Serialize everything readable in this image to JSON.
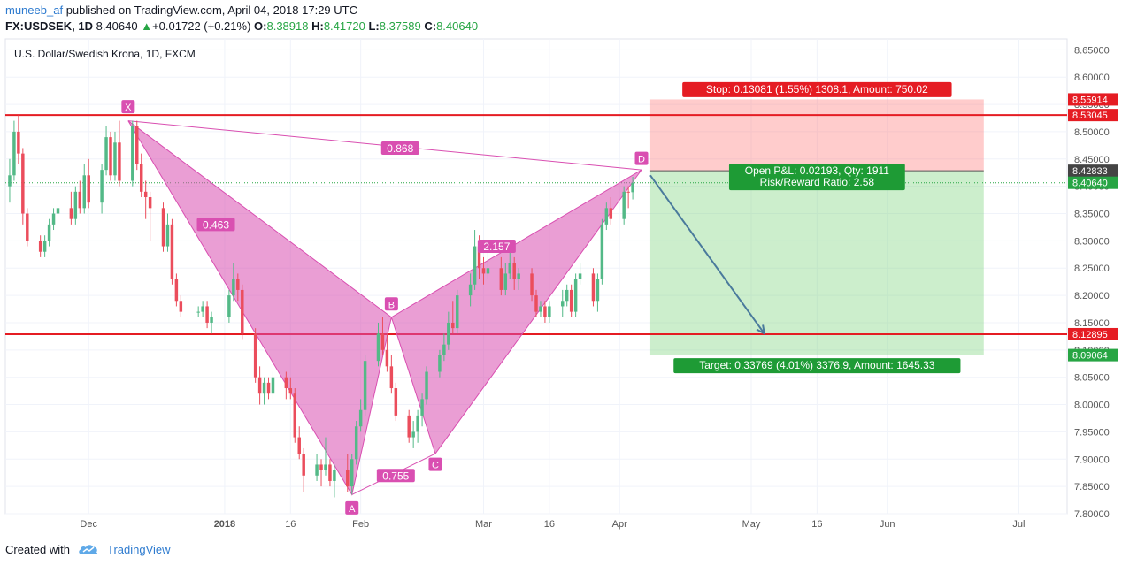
{
  "header": {
    "author": "muneeb_af",
    "published": "published on TradingView.com, April 04, 2018 17:29 UTC",
    "symbol": "FX:USDSEK, 1D",
    "last": "8.40640",
    "change": "+0.01722 (+0.21%)",
    "o_label": "O:",
    "o_value": "8.38918",
    "h_label": "H:",
    "h_value": "8.41720",
    "l_label": "L:",
    "l_value": "8.37589",
    "c_label": "C:",
    "c_value": "8.40640"
  },
  "footer": {
    "created_with": "Created with",
    "brand": "TradingView"
  },
  "chart_data": {
    "type": "candlestick",
    "title": "U.S. Dollar/Swedish Krona, 1D, FXCM",
    "ylim": [
      7.8,
      8.67
    ],
    "y_ticks": [
      "8.65000",
      "8.60000",
      "8.55000",
      "8.50000",
      "8.45000",
      "8.40000",
      "8.35000",
      "8.30000",
      "8.25000",
      "8.20000",
      "8.15000",
      "8.10000",
      "8.05000",
      "8.00000",
      "7.95000",
      "7.90000",
      "7.85000",
      "7.80000"
    ],
    "x_ticks": [
      {
        "label": "Dec",
        "date": "2017-12-01"
      },
      {
        "label": "2018",
        "date": "2018-01-01",
        "bold": true
      },
      {
        "label": "16",
        "date": "2018-01-16"
      },
      {
        "label": "Feb",
        "date": "2018-02-01"
      },
      {
        "label": "Mar",
        "date": "2018-03-01"
      },
      {
        "label": "16",
        "date": "2018-03-16"
      },
      {
        "label": "Apr",
        "date": "2018-04-01"
      },
      {
        "label": "May",
        "date": "2018-05-01"
      },
      {
        "label": "16",
        "date": "2018-05-16"
      },
      {
        "label": "Jun",
        "date": "2018-06-01"
      },
      {
        "label": "Jul",
        "date": "2018-07-01"
      }
    ],
    "x_range": [
      "2017-11-12",
      "2018-07-12"
    ],
    "horizontal_lines": [
      {
        "price": 8.53045,
        "label": "8.53045",
        "color": "#e51c23"
      },
      {
        "price": 8.12895,
        "label": "8.12895",
        "color": "#e51c23"
      }
    ],
    "price_labels": [
      {
        "price": 8.55914,
        "label": "8.55914",
        "color": "#e51c23"
      },
      {
        "price": 8.42833,
        "label": "8.42833",
        "color": "#444444"
      },
      {
        "price": 8.4064,
        "label": "8.40640",
        "color": "#27a544"
      },
      {
        "price": 8.09064,
        "label": "8.09064",
        "color": "#27a544"
      }
    ],
    "harmonic_pattern": {
      "points": [
        {
          "name": "X",
          "date": "2017-12-10",
          "price": 8.52
        },
        {
          "name": "A",
          "date": "2018-01-30",
          "price": 7.835
        },
        {
          "name": "B",
          "date": "2018-02-08",
          "price": 8.16
        },
        {
          "name": "C",
          "date": "2018-02-18",
          "price": 7.91
        },
        {
          "name": "D",
          "date": "2018-04-06",
          "price": 8.43
        }
      ],
      "ratios": [
        {
          "label": "0.868",
          "date": "2018-02-10",
          "price": 8.47
        },
        {
          "label": "0.463",
          "date": "2017-12-30",
          "price": 8.33
        },
        {
          "label": "0.755",
          "date": "2018-02-09",
          "price": 7.87
        },
        {
          "label": "2.157",
          "date": "2018-03-04",
          "price": 8.29
        }
      ],
      "color": "#d94fb1"
    },
    "position": {
      "type": "short",
      "entry": 8.42833,
      "stop": 8.55914,
      "target": 8.09064,
      "start_date": "2018-04-08",
      "end_date": "2018-06-23",
      "stop_label": "Stop: 0.13081 (1.55%) 1308.1, Amount: 750.02",
      "pnl_label": "Open P&L: 0.02193, Qty: 1911",
      "rr_label": "Risk/Reward Ratio: 2.58",
      "target_label": "Target: 0.33769 (4.01%) 3376.9, Amount: 1645.33"
    },
    "projection_arrow": {
      "from_date": "2018-04-08",
      "from_price": 8.42,
      "to_date": "2018-05-04",
      "to_price": 8.13
    },
    "last_price": 8.4064,
    "candles": [
      {
        "d": "2017-11-13",
        "o": 8.4,
        "h": 8.45,
        "l": 8.37,
        "c": 8.42
      },
      {
        "d": "2017-11-14",
        "o": 8.42,
        "h": 8.52,
        "l": 8.41,
        "c": 8.5
      },
      {
        "d": "2017-11-15",
        "o": 8.5,
        "h": 8.53,
        "l": 8.44,
        "c": 8.46
      },
      {
        "d": "2017-11-16",
        "o": 8.46,
        "h": 8.47,
        "l": 8.33,
        "c": 8.35
      },
      {
        "d": "2017-11-17",
        "o": 8.35,
        "h": 8.36,
        "l": 8.29,
        "c": 8.3
      },
      {
        "d": "2017-11-20",
        "o": 8.3,
        "h": 8.31,
        "l": 8.27,
        "c": 8.28
      },
      {
        "d": "2017-11-21",
        "o": 8.28,
        "h": 8.31,
        "l": 8.27,
        "c": 8.3
      },
      {
        "d": "2017-11-22",
        "o": 8.3,
        "h": 8.34,
        "l": 8.29,
        "c": 8.33
      },
      {
        "d": "2017-11-23",
        "o": 8.33,
        "h": 8.36,
        "l": 8.32,
        "c": 8.35
      },
      {
        "d": "2017-11-24",
        "o": 8.35,
        "h": 8.38,
        "l": 8.34,
        "c": 8.36
      },
      {
        "d": "2017-11-27",
        "o": 8.36,
        "h": 8.39,
        "l": 8.33,
        "c": 8.34
      },
      {
        "d": "2017-11-28",
        "o": 8.34,
        "h": 8.4,
        "l": 8.33,
        "c": 8.39
      },
      {
        "d": "2017-11-29",
        "o": 8.39,
        "h": 8.41,
        "l": 8.35,
        "c": 8.36
      },
      {
        "d": "2017-11-30",
        "o": 8.36,
        "h": 8.44,
        "l": 8.35,
        "c": 8.42
      },
      {
        "d": "2017-12-01",
        "o": 8.42,
        "h": 8.45,
        "l": 8.36,
        "c": 8.37
      },
      {
        "d": "2017-12-04",
        "o": 8.37,
        "h": 8.44,
        "l": 8.35,
        "c": 8.43
      },
      {
        "d": "2017-12-05",
        "o": 8.43,
        "h": 8.51,
        "l": 8.42,
        "c": 8.49
      },
      {
        "d": "2017-12-06",
        "o": 8.49,
        "h": 8.5,
        "l": 8.41,
        "c": 8.42
      },
      {
        "d": "2017-12-07",
        "o": 8.42,
        "h": 8.5,
        "l": 8.41,
        "c": 8.48
      },
      {
        "d": "2017-12-08",
        "o": 8.48,
        "h": 8.52,
        "l": 8.4,
        "c": 8.41
      },
      {
        "d": "2017-12-11",
        "o": 8.41,
        "h": 8.52,
        "l": 8.4,
        "c": 8.51
      },
      {
        "d": "2017-12-12",
        "o": 8.51,
        "h": 8.52,
        "l": 8.43,
        "c": 8.44
      },
      {
        "d": "2017-12-13",
        "o": 8.44,
        "h": 8.46,
        "l": 8.38,
        "c": 8.39
      },
      {
        "d": "2017-12-14",
        "o": 8.39,
        "h": 8.41,
        "l": 8.34,
        "c": 8.38
      },
      {
        "d": "2017-12-15",
        "o": 8.38,
        "h": 8.39,
        "l": 8.3,
        "c": 8.36
      },
      {
        "d": "2017-12-18",
        "o": 8.36,
        "h": 8.37,
        "l": 8.28,
        "c": 8.29
      },
      {
        "d": "2017-12-19",
        "o": 8.29,
        "h": 8.35,
        "l": 8.28,
        "c": 8.33
      },
      {
        "d": "2017-12-20",
        "o": 8.33,
        "h": 8.34,
        "l": 8.22,
        "c": 8.23
      },
      {
        "d": "2017-12-21",
        "o": 8.23,
        "h": 8.24,
        "l": 8.18,
        "c": 8.19
      },
      {
        "d": "2017-12-22",
        "o": 8.19,
        "h": 8.2,
        "l": 8.16,
        "c": 8.17
      },
      {
        "d": "2017-12-26",
        "o": 8.17,
        "h": 8.18,
        "l": 8.16,
        "c": 8.17
      },
      {
        "d": "2017-12-27",
        "o": 8.17,
        "h": 8.19,
        "l": 8.16,
        "c": 8.18
      },
      {
        "d": "2017-12-28",
        "o": 8.18,
        "h": 8.19,
        "l": 8.14,
        "c": 8.15
      },
      {
        "d": "2017-12-29",
        "o": 8.15,
        "h": 8.17,
        "l": 8.13,
        "c": 8.16
      },
      {
        "d": "2018-01-02",
        "o": 8.16,
        "h": 8.21,
        "l": 8.15,
        "c": 8.2
      },
      {
        "d": "2018-01-03",
        "o": 8.2,
        "h": 8.26,
        "l": 8.19,
        "c": 8.23
      },
      {
        "d": "2018-01-04",
        "o": 8.23,
        "h": 8.24,
        "l": 8.19,
        "c": 8.21
      },
      {
        "d": "2018-01-05",
        "o": 8.21,
        "h": 8.22,
        "l": 8.12,
        "c": 8.13
      },
      {
        "d": "2018-01-08",
        "o": 8.13,
        "h": 8.14,
        "l": 8.04,
        "c": 8.05
      },
      {
        "d": "2018-01-09",
        "o": 8.05,
        "h": 8.07,
        "l": 8.0,
        "c": 8.02
      },
      {
        "d": "2018-01-10",
        "o": 8.02,
        "h": 8.05,
        "l": 8.0,
        "c": 8.04
      },
      {
        "d": "2018-01-11",
        "o": 8.04,
        "h": 8.05,
        "l": 8.01,
        "c": 8.02
      },
      {
        "d": "2018-01-12",
        "o": 8.02,
        "h": 8.06,
        "l": 8.01,
        "c": 8.05
      },
      {
        "d": "2018-01-15",
        "o": 8.05,
        "h": 8.06,
        "l": 8.01,
        "c": 8.03
      },
      {
        "d": "2018-01-16",
        "o": 8.03,
        "h": 8.05,
        "l": 8.01,
        "c": 8.02
      },
      {
        "d": "2018-01-17",
        "o": 8.02,
        "h": 8.03,
        "l": 7.93,
        "c": 7.94
      },
      {
        "d": "2018-01-18",
        "o": 7.94,
        "h": 7.96,
        "l": 7.9,
        "c": 7.91
      },
      {
        "d": "2018-01-19",
        "o": 7.91,
        "h": 7.92,
        "l": 7.84,
        "c": 7.87
      },
      {
        "d": "2018-01-22",
        "o": 7.87,
        "h": 7.91,
        "l": 7.86,
        "c": 7.89
      },
      {
        "d": "2018-01-23",
        "o": 7.89,
        "h": 7.9,
        "l": 7.85,
        "c": 7.88
      },
      {
        "d": "2018-01-24",
        "o": 7.88,
        "h": 7.94,
        "l": 7.87,
        "c": 7.89
      },
      {
        "d": "2018-01-25",
        "o": 7.89,
        "h": 7.9,
        "l": 7.85,
        "c": 7.86
      },
      {
        "d": "2018-01-26",
        "o": 7.86,
        "h": 7.89,
        "l": 7.83,
        "c": 7.88
      },
      {
        "d": "2018-01-29",
        "o": 7.88,
        "h": 7.91,
        "l": 7.84,
        "c": 7.85
      },
      {
        "d": "2018-01-30",
        "o": 7.85,
        "h": 7.91,
        "l": 7.835,
        "c": 7.9
      },
      {
        "d": "2018-01-31",
        "o": 7.9,
        "h": 7.97,
        "l": 7.89,
        "c": 7.96
      },
      {
        "d": "2018-02-01",
        "o": 7.96,
        "h": 8.01,
        "l": 7.95,
        "c": 7.99
      },
      {
        "d": "2018-02-02",
        "o": 7.99,
        "h": 8.09,
        "l": 7.98,
        "c": 8.08
      },
      {
        "d": "2018-02-05",
        "o": 8.08,
        "h": 8.15,
        "l": 8.07,
        "c": 8.13
      },
      {
        "d": "2018-02-06",
        "o": 8.13,
        "h": 8.16,
        "l": 8.09,
        "c": 8.1
      },
      {
        "d": "2018-02-07",
        "o": 8.1,
        "h": 8.13,
        "l": 8.06,
        "c": 8.07
      },
      {
        "d": "2018-02-08",
        "o": 8.07,
        "h": 8.09,
        "l": 8.02,
        "c": 8.03
      },
      {
        "d": "2018-02-09",
        "o": 8.03,
        "h": 8.04,
        "l": 7.97,
        "c": 7.98
      },
      {
        "d": "2018-02-12",
        "o": 7.98,
        "h": 7.99,
        "l": 7.93,
        "c": 7.94
      },
      {
        "d": "2018-02-13",
        "o": 7.94,
        "h": 7.97,
        "l": 7.92,
        "c": 7.95
      },
      {
        "d": "2018-02-14",
        "o": 7.95,
        "h": 7.99,
        "l": 7.93,
        "c": 7.98
      },
      {
        "d": "2018-02-15",
        "o": 7.98,
        "h": 8.02,
        "l": 7.96,
        "c": 8.01
      },
      {
        "d": "2018-02-16",
        "o": 8.01,
        "h": 8.07,
        "l": 8.0,
        "c": 8.06
      },
      {
        "d": "2018-02-19",
        "o": 8.06,
        "h": 8.1,
        "l": 8.05,
        "c": 8.09
      },
      {
        "d": "2018-02-20",
        "o": 8.09,
        "h": 8.13,
        "l": 8.08,
        "c": 8.11
      },
      {
        "d": "2018-02-21",
        "o": 8.11,
        "h": 8.17,
        "l": 8.1,
        "c": 8.15
      },
      {
        "d": "2018-02-22",
        "o": 8.15,
        "h": 8.19,
        "l": 8.13,
        "c": 8.14
      },
      {
        "d": "2018-02-23",
        "o": 8.14,
        "h": 8.21,
        "l": 8.13,
        "c": 8.2
      },
      {
        "d": "2018-02-26",
        "o": 8.2,
        "h": 8.24,
        "l": 8.18,
        "c": 8.22
      },
      {
        "d": "2018-02-27",
        "o": 8.22,
        "h": 8.32,
        "l": 8.21,
        "c": 8.29
      },
      {
        "d": "2018-02-28",
        "o": 8.29,
        "h": 8.31,
        "l": 8.23,
        "c": 8.25
      },
      {
        "d": "2018-03-01",
        "o": 8.25,
        "h": 8.27,
        "l": 8.22,
        "c": 8.24
      },
      {
        "d": "2018-03-02",
        "o": 8.24,
        "h": 8.28,
        "l": 8.23,
        "c": 8.25
      },
      {
        "d": "2018-03-05",
        "o": 8.25,
        "h": 8.27,
        "l": 8.2,
        "c": 8.21
      },
      {
        "d": "2018-03-06",
        "o": 8.21,
        "h": 8.26,
        "l": 8.2,
        "c": 8.24
      },
      {
        "d": "2018-03-07",
        "o": 8.24,
        "h": 8.28,
        "l": 8.23,
        "c": 8.26
      },
      {
        "d": "2018-03-08",
        "o": 8.26,
        "h": 8.27,
        "l": 8.21,
        "c": 8.23
      },
      {
        "d": "2018-03-09",
        "o": 8.23,
        "h": 8.25,
        "l": 8.21,
        "c": 8.24
      },
      {
        "d": "2018-03-12",
        "o": 8.24,
        "h": 8.25,
        "l": 8.19,
        "c": 8.2
      },
      {
        "d": "2018-03-13",
        "o": 8.2,
        "h": 8.21,
        "l": 8.16,
        "c": 8.17
      },
      {
        "d": "2018-03-14",
        "o": 8.17,
        "h": 8.19,
        "l": 8.16,
        "c": 8.18
      },
      {
        "d": "2018-03-15",
        "o": 8.18,
        "h": 8.19,
        "l": 8.15,
        "c": 8.16
      },
      {
        "d": "2018-03-16",
        "o": 8.16,
        "h": 8.19,
        "l": 8.15,
        "c": 8.18
      },
      {
        "d": "2018-03-19",
        "o": 8.18,
        "h": 8.21,
        "l": 8.16,
        "c": 8.19
      },
      {
        "d": "2018-03-20",
        "o": 8.19,
        "h": 8.22,
        "l": 8.18,
        "c": 8.21
      },
      {
        "d": "2018-03-21",
        "o": 8.21,
        "h": 8.22,
        "l": 8.16,
        "c": 8.17
      },
      {
        "d": "2018-03-22",
        "o": 8.17,
        "h": 8.24,
        "l": 8.16,
        "c": 8.23
      },
      {
        "d": "2018-03-23",
        "o": 8.23,
        "h": 8.26,
        "l": 8.22,
        "c": 8.24
      },
      {
        "d": "2018-03-26",
        "o": 8.24,
        "h": 8.25,
        "l": 8.18,
        "c": 8.19
      },
      {
        "d": "2018-03-27",
        "o": 8.19,
        "h": 8.24,
        "l": 8.17,
        "c": 8.23
      },
      {
        "d": "2018-03-28",
        "o": 8.23,
        "h": 8.34,
        "l": 8.22,
        "c": 8.33
      },
      {
        "d": "2018-03-29",
        "o": 8.33,
        "h": 8.37,
        "l": 8.32,
        "c": 8.36
      },
      {
        "d": "2018-03-30",
        "o": 8.36,
        "h": 8.38,
        "l": 8.33,
        "c": 8.34
      },
      {
        "d": "2018-04-02",
        "o": 8.34,
        "h": 8.4,
        "l": 8.33,
        "c": 8.39
      },
      {
        "d": "2018-04-03",
        "o": 8.39,
        "h": 8.4,
        "l": 8.36,
        "c": 8.389
      },
      {
        "d": "2018-04-04",
        "o": 8.38918,
        "h": 8.4172,
        "l": 8.37589,
        "c": 8.4064
      }
    ]
  }
}
